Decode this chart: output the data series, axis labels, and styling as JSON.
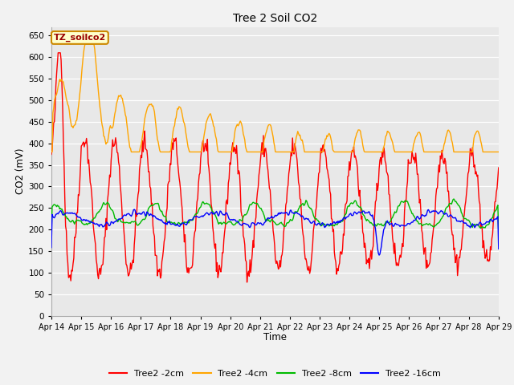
{
  "title": "Tree 2 Soil CO2",
  "xlabel": "Time",
  "ylabel": "CO2 (mV)",
  "ylim": [
    0,
    670
  ],
  "yticks": [
    0,
    50,
    100,
    150,
    200,
    250,
    300,
    350,
    400,
    450,
    500,
    550,
    600,
    650
  ],
  "series_labels": [
    "Tree2 -2cm",
    "Tree2 -4cm",
    "Tree2 -8cm",
    "Tree2 -16cm"
  ],
  "series_colors": [
    "#ff0000",
    "#ffa500",
    "#00bb00",
    "#0000ff"
  ],
  "annotation_label": "TZ_soilco2",
  "annotation_bg": "#ffffcc",
  "annotation_border": "#cc8800",
  "plot_bg": "#e8e8e8",
  "fig_bg": "#f2f2f2",
  "grid_color": "#ffffff",
  "x_tick_labels": [
    "Apr 14",
    "Apr 15",
    "Apr 16",
    "Apr 17",
    "Apr 18",
    "Apr 19",
    "Apr 20",
    "Apr 21",
    "Apr 22",
    "Apr 23",
    "Apr 24",
    "Apr 25",
    "Apr 26",
    "Apr 27",
    "Apr 28",
    "Apr 29"
  ],
  "n_points": 600,
  "seed": 42
}
